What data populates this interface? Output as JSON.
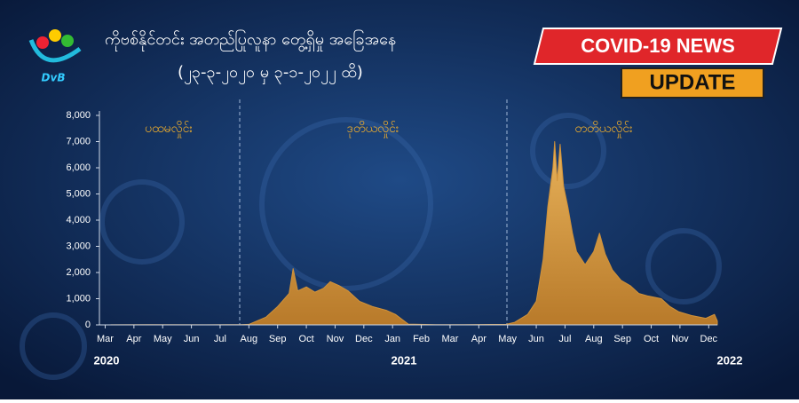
{
  "header": {
    "logo": "DvB",
    "title": "ကိုဗစ်နိုင်တင်း အတည်ပြုလူနာ တွေ့ရှိမှု အခြေအနေ",
    "subtitle": "(၂၃-၃-၂၀၂၀  မှ  ၃-၁-၂၀၂၂  ထိ)",
    "badges": [
      "COVID-19 NEWS",
      "UPDATE"
    ]
  },
  "chart_data": {
    "type": "area",
    "color": "#d0923a",
    "annotations": [
      "ပထမလှိုင်း",
      "ဒုတိယလှိုင်း",
      "တတိယလှိုင်း"
    ],
    "year_labels": [
      "2020",
      "2021",
      "2022"
    ],
    "x": [
      0.7,
      2,
      4,
      5.2,
      5.5,
      6.1,
      6.5,
      6.9,
      7.04,
      7.2,
      7.5,
      7.8,
      8.1,
      8.33,
      8.64,
      8.95,
      9.35,
      9.8,
      10.3,
      10.6,
      10.9,
      11.05,
      12,
      13,
      14.45,
      14.75,
      15.2,
      15.5,
      15.74,
      15.9,
      16.08,
      16.14,
      16.23,
      16.33,
      16.45,
      16.6,
      16.76,
      16.9,
      17.2,
      17.5,
      17.7,
      17.9,
      18.15,
      18.45,
      18.77,
      19.07,
      19.4,
      19.85,
      20.15,
      20.46,
      20.93,
      21.4,
      21.7,
      21.8
    ],
    "values": [
      5,
      10,
      5,
      10,
      20,
      300,
      700,
      1200,
      2150,
      1300,
      1450,
      1250,
      1400,
      1650,
      1500,
      1300,
      900,
      700,
      550,
      400,
      150,
      30,
      10,
      10,
      20,
      100,
      400,
      900,
      2500,
      4500,
      6000,
      7000,
      5500,
      6900,
      5300,
      4500,
      3500,
      2800,
      2300,
      2800,
      3500,
      2700,
      2100,
      1700,
      1500,
      1200,
      1100,
      1000,
      700,
      500,
      350,
      250,
      400,
      150
    ],
    "xlim": [
      0.3,
      21.8
    ],
    "xticks": [
      {
        "value": 0.5,
        "label": "Mar"
      },
      {
        "value": 1.5,
        "label": "Apr"
      },
      {
        "value": 2.5,
        "label": "May"
      },
      {
        "value": 3.5,
        "label": "Jun"
      },
      {
        "value": 4.5,
        "label": "Jul"
      },
      {
        "value": 5.5,
        "label": "Aug"
      },
      {
        "value": 6.5,
        "label": "Sep"
      },
      {
        "value": 7.5,
        "label": "Oct"
      },
      {
        "value": 8.5,
        "label": "Nov"
      },
      {
        "value": 9.5,
        "label": "Dec"
      },
      {
        "value": 10.5,
        "label": "Jan"
      },
      {
        "value": 11.5,
        "label": "Feb"
      },
      {
        "value": 12.5,
        "label": "Mar"
      },
      {
        "value": 13.5,
        "label": "Apr"
      },
      {
        "value": 14.5,
        "label": "May"
      },
      {
        "value": 15.5,
        "label": "Jun"
      },
      {
        "value": 16.5,
        "label": "Jul"
      },
      {
        "value": 17.5,
        "label": "Aug"
      },
      {
        "value": 18.5,
        "label": "Sep"
      },
      {
        "value": 19.5,
        "label": "Oct"
      },
      {
        "value": 20.5,
        "label": "Nov"
      },
      {
        "value": 21.5,
        "label": "Dec"
      }
    ],
    "ylim": [
      0,
      8000
    ],
    "yticks": [
      0,
      {
        "value": 1000,
        "label": "1,000"
      },
      {
        "value": 2000,
        "label": "2,000"
      },
      {
        "value": 3000,
        "label": "3,000"
      },
      {
        "value": 4000,
        "label": "4,000"
      },
      {
        "value": 5000,
        "label": "5,000"
      },
      {
        "value": 6000,
        "label": "6,000"
      },
      {
        "value": 7000,
        "label": "7,000"
      },
      {
        "value": 8000,
        "label": "8,000"
      }
    ],
    "grid": false
  }
}
